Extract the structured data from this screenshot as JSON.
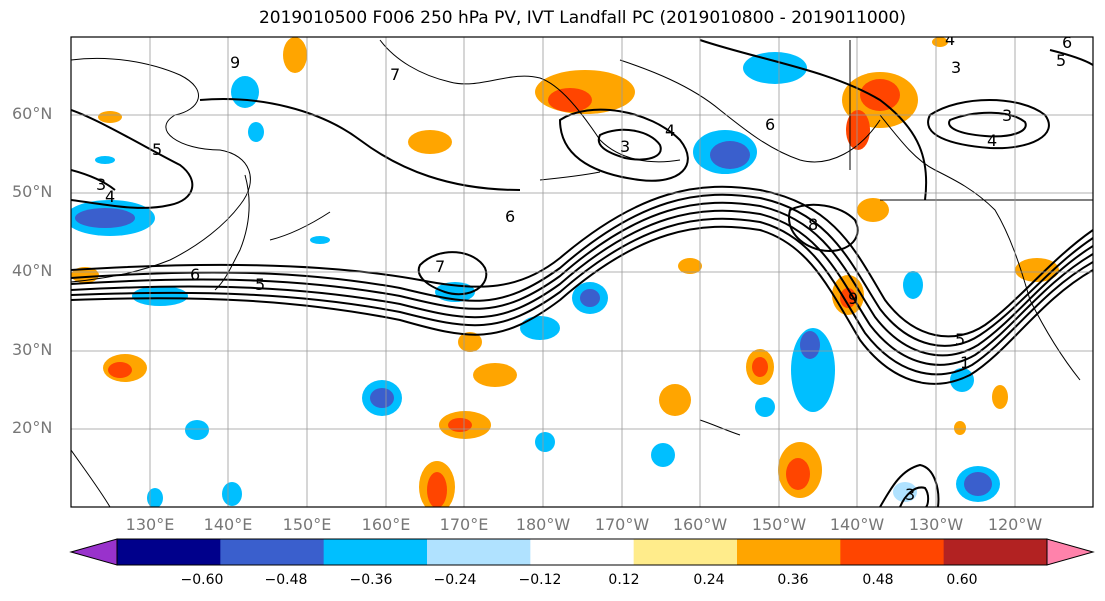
{
  "title": "2019010500 F006 250 hPa PV, IVT Landfall PC (2019010800 - 2019011000)",
  "lat_labels": [
    "60°N",
    "50°N",
    "40°N",
    "30°N",
    "20°N"
  ],
  "lon_labels": [
    "130°E",
    "140°E",
    "150°E",
    "160°E",
    "170°E",
    "180°W",
    "170°W",
    "160°W",
    "150°W",
    "140°W",
    "130°W",
    "120°W"
  ],
  "colorbar": {
    "ticks": [
      "−0.60",
      "−0.48",
      "−0.36",
      "−0.24",
      "−0.12",
      "0.12",
      "0.24",
      "0.36",
      "0.48",
      "0.60"
    ],
    "colors": [
      "#9932cc",
      "#00008b",
      "#3a5fcd",
      "#00bfff",
      "#b0e2ff",
      "#ffffff",
      "#ffec8b",
      "#ffa500",
      "#ff4500",
      "#b22222",
      "#ff82ab"
    ]
  },
  "contour_labels": [
    "7",
    "9",
    "3",
    "4",
    "3",
    "4",
    "6",
    "6",
    "7",
    "6",
    "5",
    "8",
    "9",
    "5",
    "1",
    "3",
    "4",
    "3",
    "4",
    "5",
    "3",
    "6",
    "5"
  ]
}
